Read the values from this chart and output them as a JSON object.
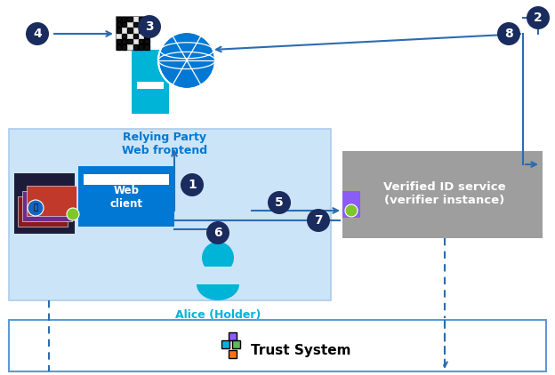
{
  "bg_color": "#ffffff",
  "circle_color": "#1a2b5e",
  "circle_text_color": "#ffffff",
  "arrow_color": "#2b6cb0",
  "dashed_color": "#5b9bd5",
  "relying_party_label": "Relying Party\nWeb frontend",
  "relying_party_color": "#0078d4",
  "web_client_label": "Web\nclient",
  "alice_label": "Alice (Holder)",
  "alice_color": "#00b4d8",
  "verified_id_label": "Verified ID service\n(verifier instance)",
  "verified_id_bg": "#9e9e9e",
  "verified_id_text_color": "#ffffff",
  "trust_system_label": "Trust System",
  "light_blue_rect": "#cce4f7",
  "light_blue_edge": "#aaccee",
  "trust_border": "#5b9bd5",
  "globe_blue": "#0078d4",
  "globe_cyan": "#00b4d8",
  "wallet_dark": "#2d2d4e",
  "card_colors": [
    "#8b1a1a",
    "#6b2d8b",
    "#c0392b"
  ],
  "green_dot": "#7dc828",
  "purple_cred": "#8b5cf6",
  "qr_bg": "#f0f0f0"
}
